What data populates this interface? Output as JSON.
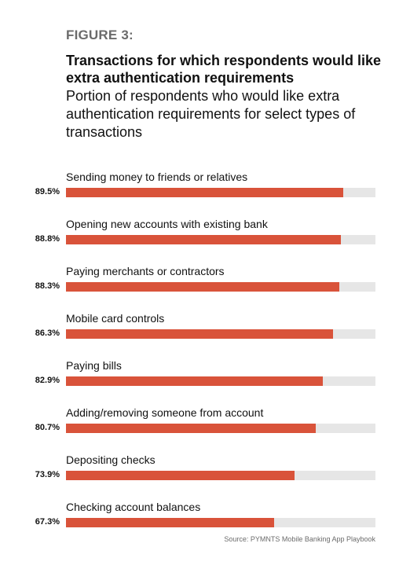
{
  "figure_label": "FIGURE 3:",
  "title": "Transactions for which respondents would like extra authentication requirements",
  "subtitle": "Portion of respondents who would like extra authentication requirements for select types of transactions",
  "source": "Source: PYMNTS Mobile Banking App Playbook",
  "colors": {
    "bar": "#d9533a",
    "track": "#e6e6e6"
  },
  "chart_data": {
    "type": "bar",
    "orientation": "horizontal",
    "categories": [
      "Sending money to friends or relatives",
      "Opening new accounts with existing bank",
      "Paying merchants or contractors",
      "Mobile card controls",
      "Paying bills",
      "Adding/removing someone from account",
      "Depositing checks",
      "Checking account balances"
    ],
    "values": [
      89.5,
      88.8,
      88.3,
      86.3,
      82.9,
      80.7,
      73.9,
      67.3
    ],
    "value_labels": [
      "89.5%",
      "88.8%",
      "88.3%",
      "86.3%",
      "82.9%",
      "80.7%",
      "73.9%",
      "67.3%"
    ],
    "xlim": [
      0,
      100
    ],
    "grid": false,
    "legend": "none"
  }
}
